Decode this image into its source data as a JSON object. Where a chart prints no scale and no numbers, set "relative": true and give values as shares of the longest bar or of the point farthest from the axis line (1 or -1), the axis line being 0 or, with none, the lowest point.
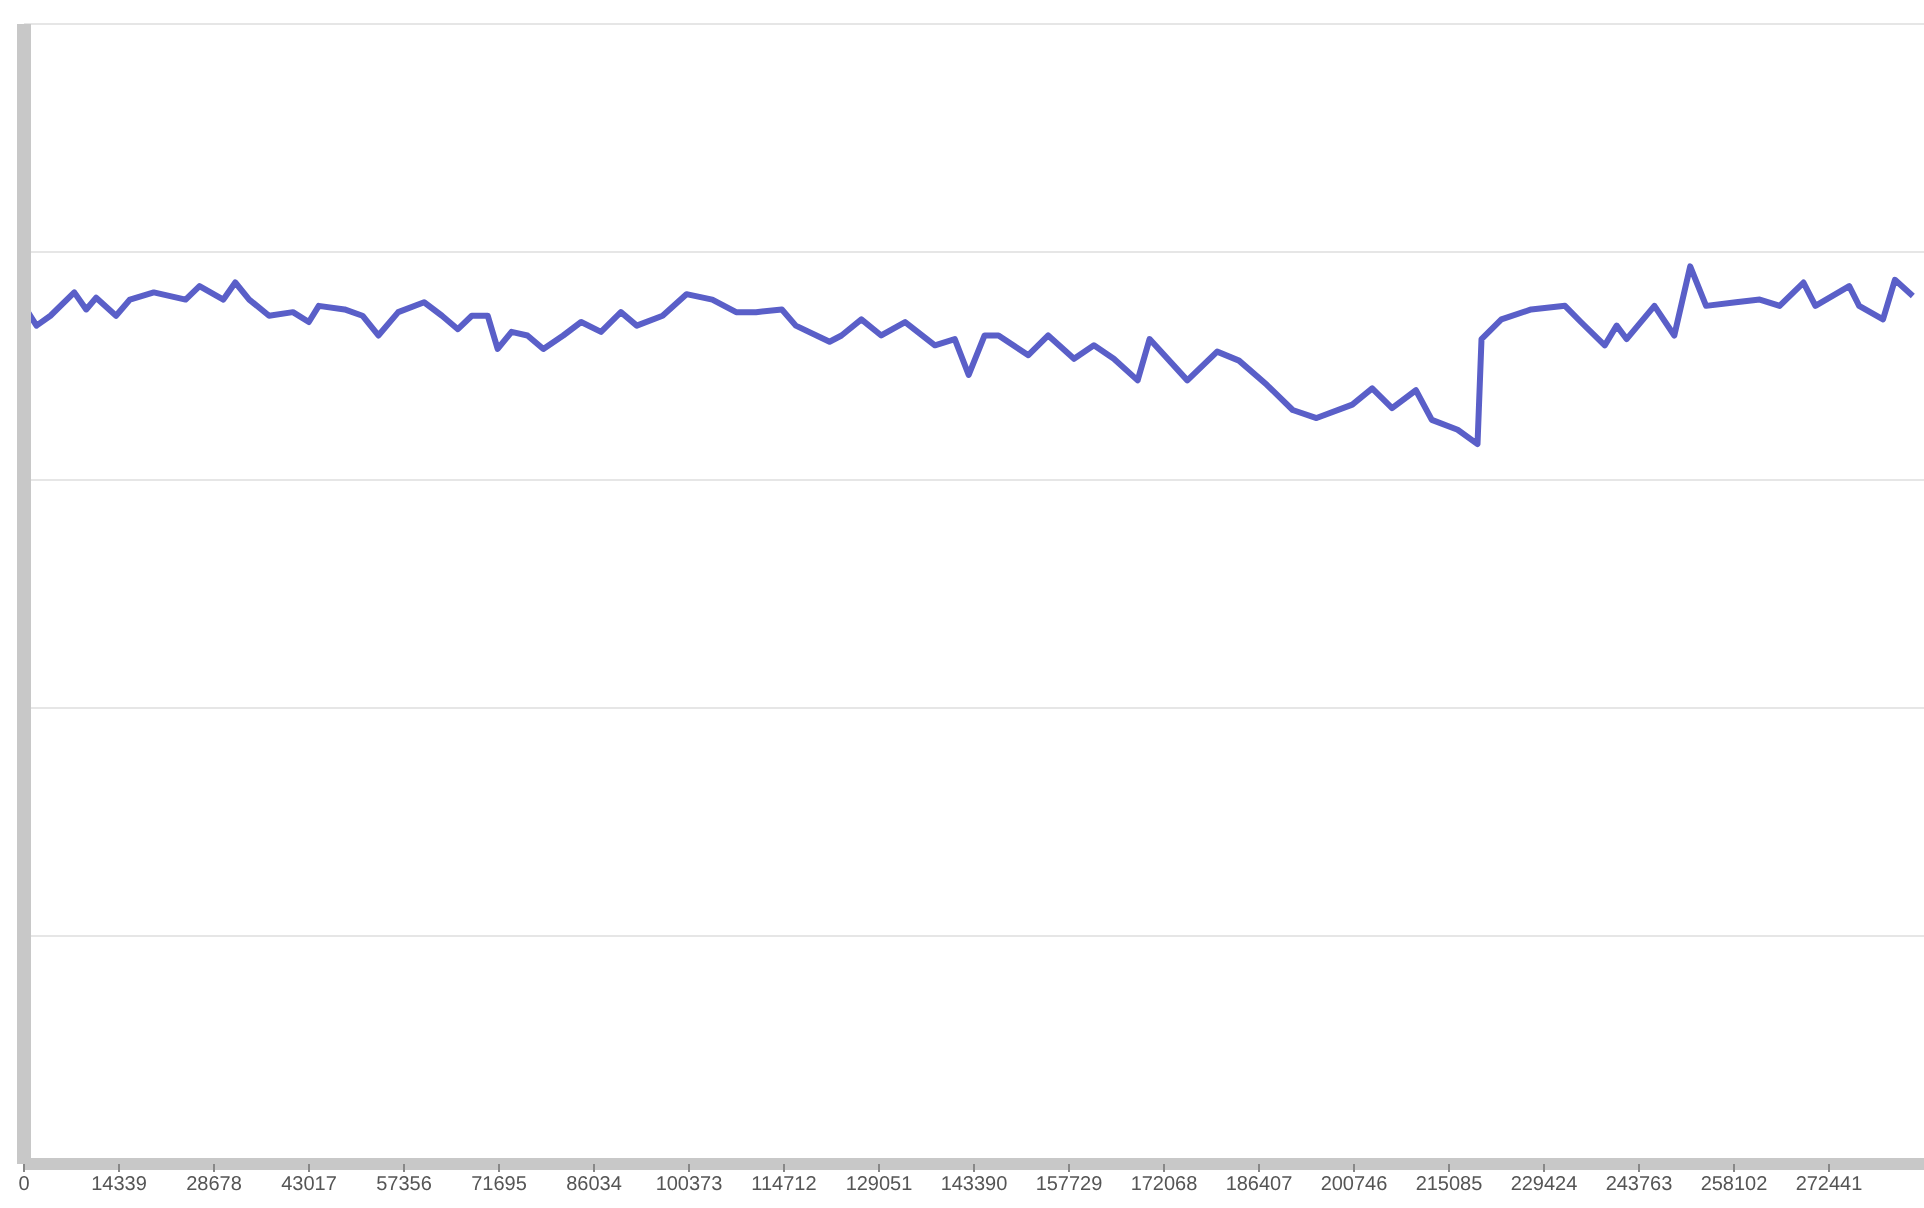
{
  "chart_data": {
    "type": "line",
    "relative": true,
    "grid": "y",
    "marker": "none",
    "line_style": "solid",
    "xlim": [
      0,
      286780
    ],
    "xticks": [
      0,
      14339,
      28678,
      43017,
      57356,
      71695,
      86034,
      100373,
      114712,
      129051,
      143390,
      157729,
      172068,
      186407,
      200746,
      215085,
      229424,
      243763,
      258102,
      272441
    ],
    "series": [
      {
        "color": "#5a5fc8",
        "x": [
          0,
          1890,
          3990,
          7590,
          9390,
          10890,
          13890,
          15990,
          19590,
          24390,
          26490,
          30090,
          31890,
          33990,
          36990,
          40590,
          42990,
          44490,
          48390,
          51090,
          53490,
          56490,
          60390,
          63090,
          65490,
          67590,
          69990,
          71490,
          73590,
          75990,
          78390,
          81390,
          84090,
          87090,
          90090,
          92490,
          96390,
          99990,
          103890,
          107490,
          110490,
          114390,
          116490,
          121590,
          123390,
          126390,
          129390,
          132990,
          137490,
          140490,
          142590,
          144990,
          147090,
          151590,
          154590,
          158490,
          161490,
          164490,
          168090,
          169890,
          175590,
          180090,
          183390,
          187590,
          191490,
          195090,
          200490,
          203490,
          206490,
          210090,
          212490,
          216390,
          219390,
          219990,
          222990,
          227490,
          232590,
          234990,
          238590,
          240390,
          241890,
          246090,
          249090,
          251490,
          253890,
          258390,
          261990,
          264990,
          268590,
          270390,
          275490,
          276990,
          280590,
          282390,
          285090
        ],
        "values": [
          0.956,
          0.934,
          0.945,
          0.971,
          0.952,
          0.965,
          0.945,
          0.963,
          0.971,
          0.963,
          0.978,
          0.963,
          0.982,
          0.963,
          0.945,
          0.949,
          0.938,
          0.956,
          0.952,
          0.945,
          0.923,
          0.949,
          0.96,
          0.945,
          0.93,
          0.945,
          0.945,
          0.908,
          0.927,
          0.923,
          0.908,
          0.923,
          0.938,
          0.927,
          0.949,
          0.934,
          0.945,
          0.969,
          0.963,
          0.949,
          0.949,
          0.952,
          0.934,
          0.916,
          0.923,
          0.941,
          0.923,
          0.938,
          0.912,
          0.919,
          0.879,
          0.923,
          0.923,
          0.901,
          0.923,
          0.897,
          0.912,
          0.897,
          0.873,
          0.919,
          0.873,
          0.905,
          0.895,
          0.868,
          0.84,
          0.831,
          0.846,
          0.864,
          0.842,
          0.862,
          0.829,
          0.818,
          0.802,
          0.919,
          0.941,
          0.952,
          0.956,
          0.938,
          0.912,
          0.934,
          0.919,
          0.956,
          0.923,
          1,
          0.956,
          0.96,
          0.963,
          0.956,
          0.982,
          0.956,
          0.978,
          0.956,
          0.941,
          0.985,
          0.967
        ]
      }
    ]
  }
}
